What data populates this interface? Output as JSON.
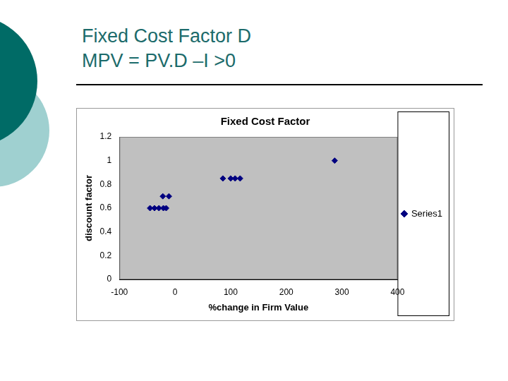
{
  "heading": [
    "Fixed Cost Factor D",
    "MPV = PV.D –I >0"
  ],
  "chart_data": {
    "type": "scatter",
    "title": "Fixed Cost Factor",
    "x_label": "%change in Firm Value",
    "y_label": "discount factor",
    "x": [
      -45,
      -37,
      -29,
      -21,
      -16,
      -22,
      -11,
      86,
      100,
      108,
      117,
      287
    ],
    "series": [
      {
        "name": "Series1",
        "color": "#000080",
        "marker": "diamond",
        "values": [
          0.6,
          0.6,
          0.6,
          0.6,
          0.6,
          0.7,
          0.7,
          0.85,
          0.85,
          0.85,
          0.85,
          1.0
        ]
      }
    ],
    "xlim": [
      -100,
      400
    ],
    "xticks": [
      -100,
      0,
      100,
      200,
      300,
      400
    ],
    "ylim": [
      0,
      1.2
    ],
    "yticks": [
      0,
      0.2,
      0.4,
      0.6,
      0.8,
      1,
      1.2
    ],
    "grid": false,
    "legend": "right"
  }
}
